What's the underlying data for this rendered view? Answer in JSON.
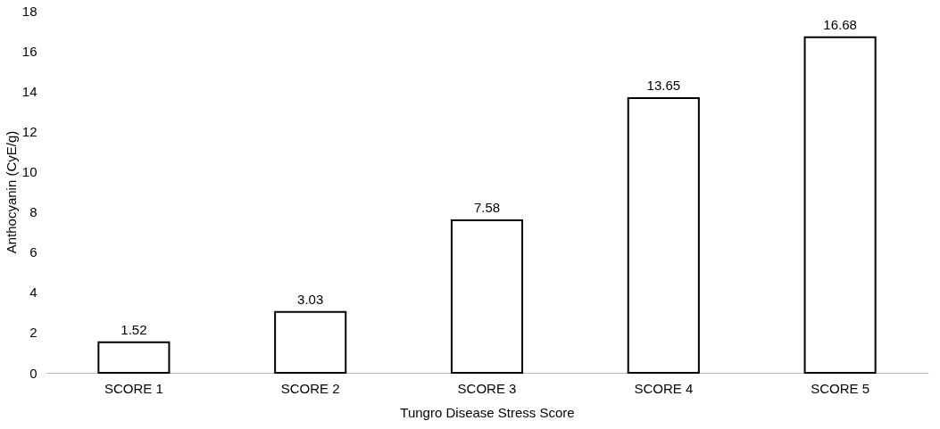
{
  "chart_data": {
    "type": "bar",
    "xlabel": "Tungro Disease Stress Score",
    "ylabel": "Anthocyanin (CyE/g)",
    "categories": [
      "SCORE 1",
      "SCORE 2",
      "SCORE 3",
      "SCORE 4",
      "SCORE 5"
    ],
    "values": [
      1.52,
      3.03,
      7.58,
      13.65,
      16.68
    ],
    "color": "#ffffff",
    "ylim": [
      0,
      18
    ],
    "yticks": [
      0,
      2,
      4,
      6,
      8,
      10,
      12,
      14,
      16,
      18
    ],
    "grid": false,
    "data_labels": true
  }
}
